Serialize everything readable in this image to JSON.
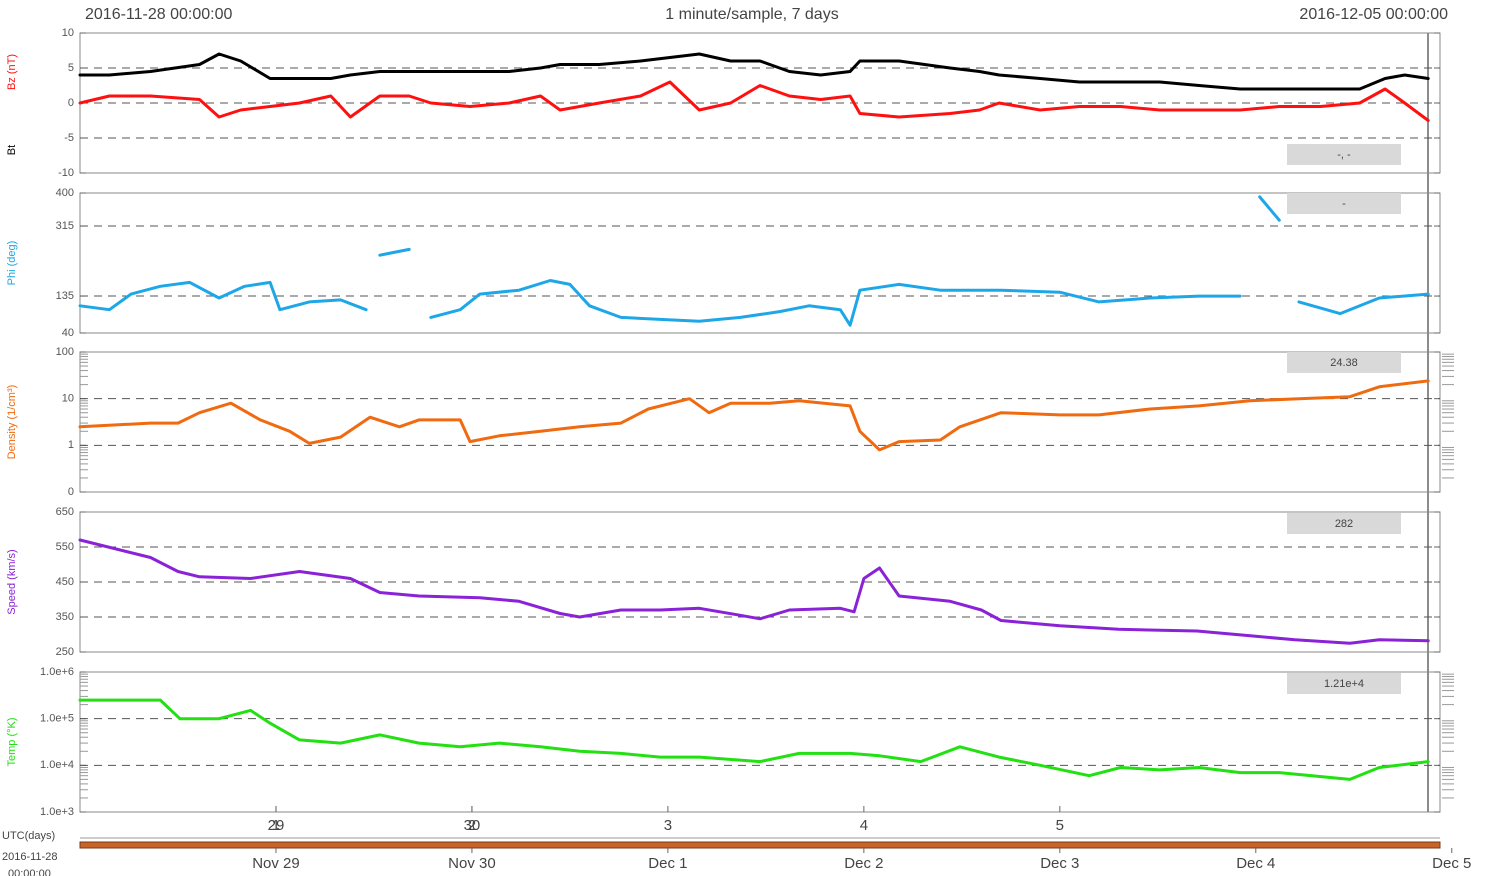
{
  "header": {
    "left": "2016-11-28 00:00:00",
    "center": "1 minute/sample,  7 days",
    "right": "2016-12-05 00:00:00"
  },
  "x_axis": {
    "xlim": [
      0,
      6.94
    ],
    "xticks": [
      {
        "value": 1,
        "label": "29"
      },
      {
        "value": 2,
        "label": "30"
      },
      1,
      2,
      3,
      4,
      5
    ],
    "date_labels": [
      "Nov 29",
      "Nov 30",
      "Dec 1",
      "Dec 2",
      "Dec 3",
      "Dec 4",
      "Dec 5"
    ],
    "date_ticks": [
      1,
      2,
      3,
      4,
      5,
      6,
      7
    ]
  },
  "footer": {
    "axis_label": "UTC(days)",
    "start_date": "2016-11-28",
    "start_time": "00:00:00"
  },
  "chart_data": [
    {
      "type": "line",
      "readout": "-, -",
      "ylim": [
        -10,
        10
      ],
      "yticks": [
        -10,
        -5,
        0,
        5,
        10
      ],
      "grid": true,
      "x": [
        0,
        0.15,
        0.36,
        0.61,
        0.71,
        0.82,
        0.97,
        1.12,
        1.28,
        1.38,
        1.53,
        1.68,
        1.79,
        1.99,
        2.19,
        2.35,
        2.45,
        2.65,
        2.86,
        3.01,
        3.16,
        3.32,
        3.47,
        3.62,
        3.78,
        3.93,
        3.98,
        4.18,
        4.44,
        4.59,
        4.69,
        4.9,
        5.1,
        5.31,
        5.51,
        5.71,
        5.92,
        6.12,
        6.33,
        6.53,
        6.66,
        6.76,
        6.88
      ],
      "series": [
        {
          "name": "Bt",
          "color": "#000000",
          "values": [
            4,
            4,
            4.5,
            5.5,
            7,
            6,
            3.5,
            3.5,
            3.5,
            4,
            4.5,
            4.5,
            4.5,
            4.5,
            4.5,
            5,
            5.5,
            5.5,
            6,
            6.5,
            7,
            6,
            6,
            4.5,
            4,
            4.5,
            6,
            6,
            5,
            4.5,
            4,
            3.5,
            3,
            3,
            3,
            2.5,
            2,
            2,
            2,
            2,
            3.5,
            4,
            3.5
          ]
        },
        {
          "name": "Bz (nT)",
          "color": "#ff1010",
          "values": [
            0,
            1,
            1,
            0.5,
            -2,
            -1,
            -0.5,
            0,
            1,
            -2,
            1,
            1,
            0,
            -0.5,
            0,
            1,
            -1,
            0,
            1,
            3,
            -1,
            0,
            2.5,
            1,
            0.5,
            1,
            -1.5,
            -2,
            -1.5,
            -1,
            0,
            -1,
            -0.5,
            -0.5,
            -1,
            -1,
            -1,
            -0.5,
            -0.5,
            0,
            2,
            0,
            -2.5
          ]
        }
      ]
    },
    {
      "type": "line",
      "readout": "-",
      "ylim": [
        40,
        400
      ],
      "yticks": [
        40,
        135,
        315,
        400
      ],
      "grid": true,
      "x": [
        0,
        0.15,
        0.26,
        0.41,
        0.56,
        0.71,
        0.84,
        0.97,
        1.02,
        1.17,
        1.33,
        1.46,
        1.5,
        1.53,
        1.68,
        1.73,
        1.79,
        1.94,
        2.04,
        2.24,
        2.4,
        2.5,
        2.6,
        2.76,
        2.96,
        3.16,
        3.37,
        3.57,
        3.72,
        3.88,
        3.93,
        3.98,
        4.18,
        4.39,
        4.7,
        5.0,
        5.2,
        5.46,
        5.71,
        5.92,
        5.97,
        6.02,
        6.12,
        6.17,
        6.22,
        6.43,
        6.63,
        6.88
      ],
      "series": [
        {
          "name": "Phi (deg)",
          "color": "#1ea7e8",
          "values": [
            110,
            100,
            140,
            160,
            170,
            130,
            160,
            170,
            100,
            120,
            125,
            100,
            null,
            240,
            255,
            null,
            80,
            100,
            140,
            150,
            175,
            165,
            110,
            80,
            75,
            70,
            80,
            95,
            110,
            100,
            60,
            150,
            165,
            150,
            150,
            145,
            120,
            130,
            135,
            135,
            null,
            390,
            330,
            null,
            120,
            90,
            130,
            140
          ]
        }
      ]
    },
    {
      "type": "line",
      "readout": "24.38",
      "log": true,
      "ylim": [
        0.1,
        100
      ],
      "yticks": [
        {
          "value": 0.1,
          "label": "0"
        },
        1,
        10,
        100
      ],
      "grid": true,
      "x": [
        0,
        0.36,
        0.5,
        0.61,
        0.77,
        0.92,
        1.07,
        1.17,
        1.33,
        1.48,
        1.63,
        1.73,
        1.94,
        1.99,
        2.14,
        2.35,
        2.55,
        2.76,
        2.9,
        3.11,
        3.21,
        3.32,
        3.52,
        3.67,
        3.93,
        3.98,
        4.08,
        4.18,
        4.39,
        4.49,
        4.7,
        5.0,
        5.2,
        5.46,
        5.71,
        5.97,
        6.22,
        6.48,
        6.63,
        6.88
      ],
      "series": [
        {
          "name": "Density  (1/cm³)",
          "color": "#f06a10",
          "values": [
            2.5,
            3,
            3,
            5,
            8,
            3.5,
            2,
            1.1,
            1.5,
            4,
            2.5,
            3.5,
            3.5,
            1.2,
            1.6,
            2,
            2.5,
            3,
            6,
            10,
            5,
            8,
            8,
            9,
            7,
            2,
            0.8,
            1.2,
            1.3,
            2.5,
            5,
            4.5,
            4.5,
            6,
            7,
            9,
            10,
            11,
            18,
            24
          ]
        }
      ]
    },
    {
      "type": "line",
      "readout": "282",
      "ylim": [
        250,
        650
      ],
      "yticks": [
        250,
        350,
        450,
        550,
        650
      ],
      "grid": true,
      "x": [
        0,
        0.36,
        0.5,
        0.61,
        0.87,
        1.12,
        1.38,
        1.53,
        1.73,
        2.04,
        2.24,
        2.45,
        2.55,
        2.76,
        2.96,
        3.16,
        3.37,
        3.47,
        3.62,
        3.88,
        3.95,
        4.0,
        4.08,
        4.18,
        4.44,
        4.6,
        4.7,
        5.0,
        5.3,
        5.7,
        6.0,
        6.2,
        6.48,
        6.63,
        6.88
      ],
      "series": [
        {
          "name": "Speed  (km/s)",
          "color": "#8a22d8",
          "values": [
            570,
            520,
            480,
            465,
            460,
            480,
            460,
            420,
            410,
            405,
            395,
            360,
            350,
            370,
            370,
            375,
            355,
            345,
            370,
            375,
            365,
            460,
            490,
            410,
            395,
            370,
            340,
            325,
            315,
            310,
            295,
            285,
            275,
            285,
            282
          ]
        }
      ]
    },
    {
      "type": "line",
      "readout": "1.21e+4",
      "log": true,
      "ylim": [
        1000,
        1000000
      ],
      "yticks": [
        {
          "value": 1000,
          "label": "1.0e+3"
        },
        {
          "value": 10000,
          "label": "1.0e+4"
        },
        {
          "value": 100000,
          "label": "1.0e+5"
        },
        {
          "value": 1000000,
          "label": "1.0e+6"
        }
      ],
      "grid": true,
      "x": [
        0,
        0.41,
        0.51,
        0.71,
        0.87,
        0.97,
        1.12,
        1.33,
        1.53,
        1.73,
        1.94,
        2.14,
        2.35,
        2.55,
        2.76,
        2.96,
        3.16,
        3.47,
        3.67,
        3.93,
        4.08,
        4.29,
        4.49,
        4.69,
        4.9,
        5.15,
        5.31,
        5.51,
        5.71,
        5.92,
        6.12,
        6.48,
        6.63,
        6.88
      ],
      "series": [
        {
          "name": "Temp (°K)",
          "color": "#22e012",
          "values": [
            250000,
            250000,
            100000,
            100000,
            150000,
            80000,
            35000,
            30000,
            45000,
            30000,
            25000,
            30000,
            25000,
            20000,
            18000,
            15000,
            15000,
            12000,
            18000,
            18000,
            16000,
            12000,
            25000,
            15000,
            10000,
            6000,
            9000,
            8000,
            9000,
            7000,
            7000,
            5000,
            9000,
            12000
          ]
        }
      ]
    }
  ]
}
